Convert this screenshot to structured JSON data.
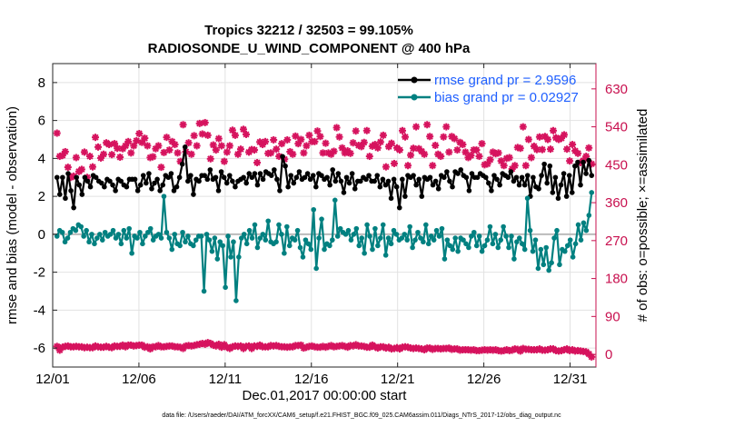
{
  "chart_data": {
    "type": "line",
    "title": "Tropics 32212 / 32503 = 99.105%",
    "subtitle": "RADIOSONDE_U_WIND_COMPONENT @ 400 hPa",
    "xlabel": "Dec.01,2017 00:00:00 start",
    "ylabel": "rmse and bias (model - observation)",
    "ylabel_right": "# of obs: o=possible; ×=assimilated",
    "footer": "data file: /Users/raeder/DAI/ATM_forcXX/CAM6_setup/f.e21.FHIST_BGC.f09_025.CAM6assim.011/Diags_NTrS_2017-12/obs_diag_output.nc",
    "xlim": [
      0,
      31.5
    ],
    "ylim": [
      -7,
      9
    ],
    "ylim_right": [
      -30,
      690
    ],
    "x_ticks": [
      0,
      5,
      10,
      15,
      20,
      25,
      30
    ],
    "x_tick_labels": [
      "12/01",
      "12/06",
      "12/11",
      "12/16",
      "12/21",
      "12/26",
      "12/31"
    ],
    "y_ticks": [
      -6,
      -4,
      -2,
      0,
      2,
      4,
      6,
      8
    ],
    "y_tick_labels": [
      "-6",
      "-4",
      "-2",
      "0",
      "2",
      "4",
      "6",
      "8"
    ],
    "y_right_ticks": [
      0,
      90,
      180,
      270,
      360,
      450,
      540,
      630
    ],
    "y_right_tick_labels": [
      "0",
      "90",
      "180",
      "270",
      "360",
      "450",
      "540",
      "630"
    ],
    "grid": true,
    "legend_position": "top-right",
    "colors": {
      "rmse": "#000000",
      "bias": "#008080",
      "obs": "#d6135e",
      "legend_text": "#1f5fff",
      "right_axis": "#c8104f",
      "zero_line": "#bbbbbb"
    },
    "series": [
      {
        "name": "rmse grand pr = 2.9596",
        "marker": "circle-line",
        "values": [
          3.0,
          2.1,
          3.0,
          1.9,
          3.2,
          2.3,
          1.4,
          3.0,
          2.6,
          2.1,
          3.0,
          2.8,
          2.5,
          3.1,
          3.0,
          2.8,
          2.7,
          2.5,
          2.9,
          2.8,
          2.6,
          2.3,
          2.9,
          2.8,
          2.6,
          2.5,
          2.9,
          2.9,
          2.9,
          2.3,
          2.6,
          3.1,
          2.7,
          3.2,
          2.4,
          2.7,
          2.9,
          2.3,
          2.6,
          3.1,
          3.0,
          3.2,
          2.3,
          2.5,
          3.0,
          3.7,
          4.6,
          2.8,
          3.1,
          2.1,
          2.9,
          2.8,
          3.1,
          3.1,
          2.9,
          3.4,
          2.9,
          3.0,
          2.3,
          3.3,
          3.0,
          2.7,
          3.1,
          2.8,
          2.5,
          2.8,
          2.9,
          3.0,
          2.7,
          3.2,
          3.0,
          3.2,
          2.6,
          3.2,
          2.9,
          3.3,
          3.2,
          3.1,
          3.4,
          2.9,
          2.3,
          4.1,
          3.6,
          2.5,
          3.1,
          2.7,
          3.0,
          3.3,
          2.9,
          3.0,
          3.2,
          2.9,
          3.1,
          2.5,
          3.2,
          3.1,
          2.9,
          3.0,
          2.6,
          3.4,
          2.8,
          3.2,
          2.8,
          2.2,
          3.0,
          2.7,
          3.2,
          2.4,
          2.8,
          2.8,
          3.0,
          2.9,
          3.1,
          2.8,
          2.8,
          3.1,
          2.5,
          2.9,
          2.6,
          2.8,
          1.9,
          2.9,
          2.5,
          1.4,
          2.9,
          2.0,
          3.1,
          3.0,
          3.1,
          2.6,
          2.9,
          2.0,
          3.0,
          2.9,
          3.0,
          2.6,
          2.8,
          2.4,
          3.1,
          3.0,
          3.3,
          2.8,
          2.5,
          3.3,
          3.2,
          3.4,
          3.1,
          3.0,
          2.3,
          3.2,
          3.0,
          3.0,
          3.2,
          3.1,
          3.0,
          2.7,
          2.3,
          3.1,
          2.9,
          2.6,
          3.2,
          3.1,
          3.0,
          3.3,
          2.8,
          3.0,
          2.6,
          3.0,
          2.6,
          3.1,
          2.0,
          3.0,
          2.5,
          2.4,
          3.1,
          3.7,
          2.7,
          3.6,
          2.2,
          3.0,
          1.9,
          2.6,
          3.2,
          2.0,
          3.1,
          2.2,
          3.6,
          3.8,
          2.6,
          3.8,
          3.2,
          3.9,
          3.1
        ]
      },
      {
        "name": "bias grand pr = 0.02927",
        "marker": "circle-line",
        "values": [
          -0.1,
          0.2,
          0.1,
          -0.4,
          -0.2,
          0.1,
          0.3,
          0.2,
          0.5,
          0.4,
          -0.1,
          0.2,
          -0.4,
          0.0,
          -0.5,
          -0.2,
          0.0,
          -0.3,
          0.1,
          -0.1,
          0.0,
          0.2,
          -0.2,
          0.0,
          -0.5,
          0.2,
          -0.2,
          0.3,
          -1.0,
          -0.1,
          -0.2,
          0.1,
          -0.5,
          -0.1,
          0.1,
          0.3,
          -0.3,
          -0.1,
          0.0,
          -0.2,
          2.0,
          0.1,
          -0.2,
          -0.8,
          0.0,
          -0.5,
          -0.6,
          0.1,
          -0.4,
          -0.1,
          -0.5,
          -0.6,
          -0.3,
          -0.1,
          -0.1,
          -3.0,
          0.0,
          -0.3,
          -0.9,
          -0.2,
          -1.3,
          -0.4,
          -0.6,
          -2.8,
          -0.1,
          -1.2,
          -0.4,
          -3.5,
          -1.2,
          -0.2,
          0.0,
          -0.5,
          0.2,
          -0.2,
          0.5,
          -0.7,
          -0.2,
          0.0,
          -0.3,
          0.7,
          -0.4,
          -0.5,
          -0.4,
          0.5,
          0.0,
          -1.0,
          0.4,
          -0.6,
          -0.2,
          -0.3,
          0.2,
          -0.7,
          -1.2,
          -0.3,
          -0.5,
          -0.8,
          1.3,
          -1.8,
          -0.2,
          0.8,
          -0.8,
          -0.5,
          -0.6,
          -0.3,
          1.8,
          -0.1,
          0.3,
          0.1,
          0.0,
          0.2,
          -0.3,
          0.0,
          0.3,
          -0.6,
          -0.2,
          -1.0,
          0.5,
          -0.1,
          -0.8,
          0.3,
          -0.6,
          -0.2,
          0.5,
          -1.1,
          -0.2,
          -0.5,
          0.2,
          0.0,
          -0.3,
          -0.2,
          0.0,
          -0.3,
          0.4,
          -0.7,
          -0.3,
          0.1,
          -0.2,
          -0.4,
          0.5,
          -0.5,
          -0.1,
          -0.3,
          0.2,
          -0.1,
          0.3,
          -1.3,
          -0.3,
          -0.6,
          -0.8,
          -0.2,
          -0.9,
          -0.2,
          -0.3,
          -0.5,
          -0.7,
          -0.1,
          0.1,
          -0.6,
          -0.1,
          -0.9,
          -0.6,
          -0.3,
          0.4,
          -0.5,
          0.0,
          -0.7,
          -0.3,
          0.4,
          -0.1,
          -0.7,
          -0.1,
          -1.3,
          -0.4,
          -0.2,
          -0.5,
          -0.8,
          1.9,
          0.2,
          -0.9,
          -0.3,
          -1.8,
          -0.8,
          -1.6,
          -0.7,
          -1.9,
          -1.5,
          -0.2,
          0.2,
          -1.6,
          -0.8,
          -0.9,
          -0.6,
          -0.3,
          -1.2,
          -0.5,
          0.5,
          -0.3,
          0.6,
          0.2,
          1.0,
          2.2
        ]
      }
    ],
    "obs_possible_upper": [
      525,
      470,
      472,
      481,
      444,
      420,
      423,
      467,
      434,
      439,
      480,
      420,
      470,
      445,
      515,
      492,
      466,
      475,
      502,
      498,
      474,
      500,
      489,
      468,
      488,
      495,
      505,
      478,
      495,
      507,
      524,
      503,
      513,
      495,
      467,
      469,
      488,
      495,
      444,
      479,
      515,
      485,
      505,
      498,
      478,
      458,
      545,
      481,
      502,
      475,
      519,
      495,
      548,
      523,
      550,
      520,
      464,
      497,
      485,
      512,
      495,
      458,
      480,
      495,
      532,
      520,
      475,
      487,
      534,
      522,
      480,
      486,
      485,
      455,
      504,
      498,
      505,
      477,
      478,
      509,
      487,
      470,
      500,
      463,
      509,
      481,
      475,
      518,
      500,
      510,
      478,
      495,
      520,
      505,
      505,
      530,
      517,
      478,
      501,
      478,
      475,
      482,
      538,
      516,
      490,
      478,
      483,
      477,
      502,
      530,
      496,
      493,
      503,
      531,
      470,
      494,
      498,
      490,
      504,
      520,
      445,
      493,
      501,
      453,
      490,
      485,
      531,
      516,
      448,
      473,
      489,
      540,
      488,
      482,
      475,
      545,
      517,
      448,
      496,
      475,
      470,
      516,
      540,
      480,
      517,
      512,
      485,
      503,
      498,
      480,
      467,
      472,
      485,
      485,
      470,
      500,
      450,
      452,
      462,
      480,
      476,
      478,
      459,
      448,
      465,
      467,
      440,
      448,
      491,
      489,
      540,
      448,
      510,
      467,
      494,
      486,
      516,
      486,
      517,
      510,
      487,
      531,
      514,
      510,
      513,
      521,
      487,
      459,
      498,
      483,
      477,
      455,
      460,
      470,
      490,
      452
    ],
    "obs_assimilated_lower": [
      19,
      10,
      17,
      19,
      20,
      18,
      18,
      19,
      18,
      18,
      16,
      17,
      16,
      16,
      20,
      18,
      17,
      17,
      19,
      17,
      16,
      20,
      19,
      19,
      22,
      18,
      22,
      22,
      20,
      21,
      22,
      22,
      17,
      18,
      13,
      18,
      18,
      21,
      18,
      18,
      19,
      20,
      20,
      18,
      18,
      17,
      14,
      20,
      21,
      20,
      21,
      23,
      24,
      26,
      24,
      28,
      26,
      22,
      20,
      24,
      17,
      23,
      17,
      14,
      18,
      20,
      19,
      20,
      14,
      19,
      20,
      14,
      20,
      19,
      22,
      18,
      18,
      18,
      21,
      20,
      21,
      19,
      18,
      18,
      17,
      18,
      18,
      21,
      21,
      22,
      15,
      17,
      19,
      20,
      18,
      17,
      17,
      19,
      17,
      19,
      21,
      18,
      19,
      20,
      21,
      19,
      17,
      21,
      20,
      23,
      20,
      20,
      19,
      17,
      17,
      22,
      18,
      15,
      18,
      18,
      15,
      17,
      13,
      14,
      16,
      13,
      17,
      18,
      17,
      15,
      14,
      15,
      14,
      13,
      11,
      15,
      15,
      12,
      14,
      14,
      13,
      14,
      14,
      15,
      12,
      13,
      13,
      10,
      11,
      11,
      11,
      10,
      11,
      9,
      9,
      10,
      11,
      10,
      11,
      10,
      11,
      9,
      8,
      9,
      11,
      9,
      10,
      13,
      12,
      8,
      14,
      12,
      12,
      11,
      11,
      11,
      13,
      10,
      10,
      11,
      13,
      13,
      9,
      8,
      9,
      11,
      13,
      9,
      11,
      8,
      9,
      8,
      7,
      6,
      1,
      -6
    ]
  }
}
